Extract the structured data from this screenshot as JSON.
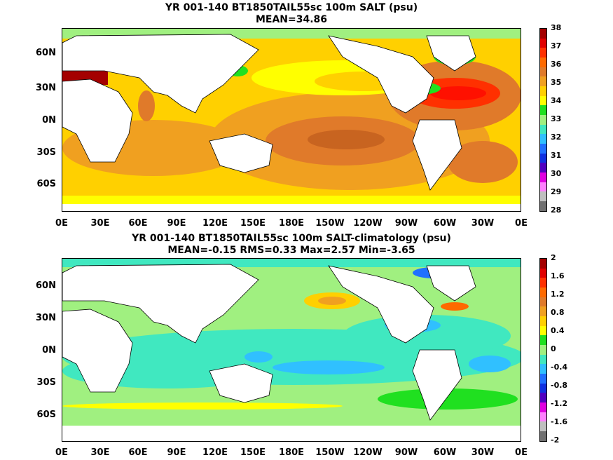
{
  "panel1": {
    "title_line1": "YR 001-140 BT1850TAIL55sc 100m SALT (psu)",
    "title_line2": "MEAN=34.86",
    "colorbar_labels": [
      "38",
      "37",
      "36",
      "35",
      "34",
      "33",
      "32",
      "31",
      "30",
      "29",
      "28"
    ],
    "colorbar_colors": [
      "#a40000",
      "#e00000",
      "#ff3000",
      "#ff6a00",
      "#e07a2a",
      "#f0a020",
      "#ffd000",
      "#ffff00",
      "#20e020",
      "#a0f080",
      "#40e8c0",
      "#30c0ff",
      "#2070ff",
      "#1030e0",
      "#5000c0",
      "#e000e0",
      "#ff80ff",
      "#c0c0c0",
      "#707070"
    ]
  },
  "panel2": {
    "title_line1": "YR 001-140 BT1850TAIL55sc 100m SALT-climatology (psu)",
    "title_line2": "MEAN=-0.15   RMS=0.33   Max=2.57   Min=-3.65",
    "colorbar_labels": [
      "2",
      "1.6",
      "1.2",
      "0.8",
      "0.4",
      "0",
      "-0.4",
      "-0.8",
      "-1.2",
      "-1.6",
      "-2"
    ],
    "colorbar_colors": [
      "#a40000",
      "#e00000",
      "#ff3000",
      "#ff6a00",
      "#e07a2a",
      "#f0a020",
      "#ffd000",
      "#ffff00",
      "#20e020",
      "#a0f080",
      "#40e8c0",
      "#30c0ff",
      "#2070ff",
      "#1030e0",
      "#5000c0",
      "#e000e0",
      "#ff80ff",
      "#c0c0c0",
      "#707070"
    ]
  },
  "lat_labels": [
    "60N",
    "30N",
    "0N",
    "30S",
    "60S"
  ],
  "lon_labels": [
    "0E",
    "30E",
    "60E",
    "90E",
    "120E",
    "150E",
    "180E",
    "150W",
    "120W",
    "90W",
    "60W",
    "30W",
    "0E"
  ]
}
